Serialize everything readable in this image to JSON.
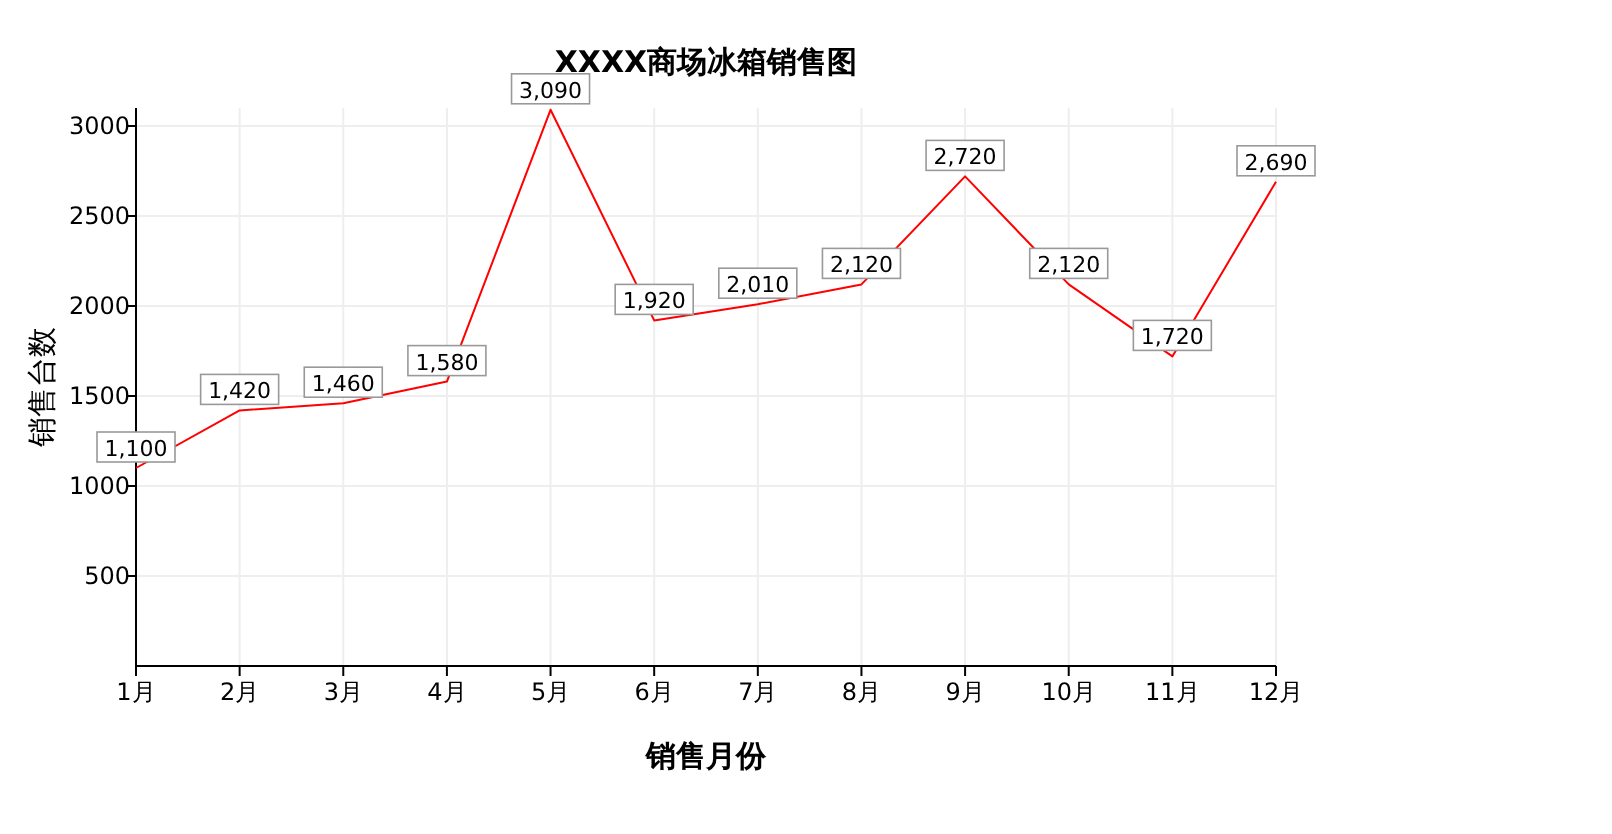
{
  "chart_data": {
    "type": "line",
    "title": "XXXX商场冰箱销售图",
    "xlabel": "销售月份",
    "ylabel": "销售台数",
    "categories": [
      "1月",
      "2月",
      "3月",
      "4月",
      "5月",
      "6月",
      "7月",
      "8月",
      "9月",
      "10月",
      "11月",
      "12月"
    ],
    "series": [
      {
        "color": "#ff0000",
        "values": [
          1100,
          1420,
          1460,
          1580,
          3090,
          1920,
          2010,
          2120,
          2720,
          2120,
          1720,
          2690
        ],
        "value_labels": [
          "1,100",
          "1,420",
          "1,460",
          "1,580",
          "3,090",
          "1,920",
          "2,010",
          "2,120",
          "2,720",
          "2,120",
          "1,720",
          "2,690"
        ]
      }
    ],
    "ylim": [
      0,
      3100
    ],
    "yticks": [
      500,
      1000,
      1500,
      2000,
      2500,
      3000
    ],
    "grid": true,
    "marker": "none",
    "line_style": "solid"
  }
}
